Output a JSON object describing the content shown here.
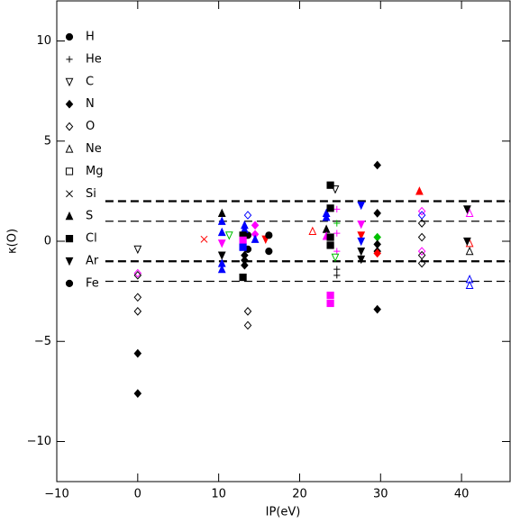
{
  "chart_data": {
    "type": "scatter",
    "x_label": "IP(eV)",
    "y_label": "κ(O)",
    "xlim": [
      -10,
      46
    ],
    "ylim": [
      -12,
      12
    ],
    "xticks": [
      {
        "value": -10,
        "label": "−10"
      },
      0,
      10,
      20,
      30,
      40
    ],
    "yticks": [
      {
        "value": -10,
        "label": "−10"
      },
      {
        "value": -5,
        "label": "−5"
      },
      0,
      5,
      10
    ],
    "hlines": [
      {
        "y": 2,
        "width": 2.2
      },
      {
        "y": 1,
        "width": 1.2
      },
      {
        "y": -1,
        "width": 2.2
      },
      {
        "y": -2,
        "width": 1.2
      }
    ],
    "hline_xlim": [
      -4,
      46
    ],
    "series": [
      {
        "name": "H",
        "marker": "circle",
        "x": [
          13.6,
          13.6
        ],
        "y": [
          0.3,
          -0.4
        ],
        "colors": [
          "#000000",
          "#000000"
        ]
      },
      {
        "name": "He",
        "marker": "plus",
        "x": [
          24.6,
          24.6,
          24.6,
          24.6,
          24.6,
          24.6
        ],
        "y": [
          1.6,
          0.9,
          0.4,
          -0.5,
          -1.4,
          -1.7
        ],
        "colors": [
          "#ff00ff",
          "#00c000",
          "#ff00ff",
          "#ff00ff",
          "#000000",
          "#000000"
        ]
      },
      {
        "name": "C",
        "marker": "tri-down-open",
        "x": [
          0,
          11.3,
          24.4,
          24.4
        ],
        "y": [
          -0.4,
          0.3,
          2.6,
          -0.8
        ],
        "colors": [
          "#000000",
          "#00c000",
          "#000000",
          "#00c000"
        ]
      },
      {
        "name": "N",
        "marker": "diamond",
        "x": [
          0,
          0,
          13.2,
          13.2,
          13.2,
          14.5,
          14.5,
          29.6,
          29.6,
          29.6,
          29.6,
          29.6,
          29.6,
          29.6
        ],
        "y": [
          -5.6,
          -7.6,
          -0.7,
          -0.95,
          -1.2,
          0.8,
          0.35,
          3.8,
          1.4,
          0.2,
          -0.15,
          -0.5,
          -0.6,
          -3.4
        ],
        "colors": [
          "#000000",
          "#000000",
          "#000000",
          "#000000",
          "#000000",
          "#ff00ff",
          "#ff00ff",
          "#000000",
          "#000000",
          "#00c000",
          "#000000",
          "#000000",
          "#ff0000",
          "#000000"
        ]
      },
      {
        "name": "O",
        "marker": "diamond-open",
        "x": [
          0,
          0,
          0,
          0,
          13.6,
          13.6,
          13.6,
          35.1,
          35.1,
          35.1,
          35.1,
          35.1,
          35.1,
          35.1
        ],
        "y": [
          -1.6,
          -1.7,
          -2.8,
          -3.5,
          1.3,
          -3.5,
          -4.2,
          1.5,
          1.3,
          0.9,
          0.2,
          -0.5,
          -0.7,
          -1.1
        ],
        "colors": [
          "#ff00ff",
          "#000000",
          "#000000",
          "#000000",
          "#0000ff",
          "#000000",
          "#000000",
          "#ff00ff",
          "#0000ff",
          "#000000",
          "#000000",
          "#ff00ff",
          "#000000",
          "#000000"
        ]
      },
      {
        "name": "Ne",
        "marker": "tri-up-open",
        "x": [
          21.6,
          41,
          41,
          41,
          41,
          41
        ],
        "y": [
          0.5,
          1.4,
          -0.1,
          -0.5,
          -1.9,
          -2.2
        ],
        "colors": [
          "#ff0000",
          "#ff00ff",
          "#ff0000",
          "#000000",
          "#0000ff",
          "#0000ff"
        ]
      },
      {
        "name": "Mg",
        "marker": "square-open",
        "x": [],
        "y": [],
        "colors": []
      },
      {
        "name": "Si",
        "marker": "cross",
        "x": [
          8.2
        ],
        "y": [
          0.1
        ],
        "colors": [
          "#ff0000"
        ]
      },
      {
        "name": "S",
        "marker": "tri-up",
        "x": [
          10.4,
          10.4,
          10.4,
          10.4,
          10.4,
          13.2,
          13.2,
          14.5,
          23.3,
          23.3,
          23.3,
          23.3,
          34.8
        ],
        "y": [
          1.4,
          1.0,
          0.45,
          -1.1,
          -1.4,
          0.8,
          0.6,
          0.1,
          1.4,
          1.2,
          0.6,
          0.25,
          2.5
        ],
        "colors": [
          "#000000",
          "#0000ff",
          "#0000ff",
          "#0000ff",
          "#0000ff",
          "#0000ff",
          "#0000ff",
          "#0000ff",
          "#0000ff",
          "#0000ff",
          "#000000",
          "#ff00ff",
          "#ff0000"
        ]
      },
      {
        "name": "Cl",
        "marker": "square",
        "x": [
          13.0,
          13.0,
          13.0,
          13.0,
          23.8,
          23.8,
          23.8,
          23.8,
          23.8,
          23.8
        ],
        "y": [
          0.3,
          0.05,
          -0.3,
          -1.8,
          2.8,
          1.65,
          0.2,
          -0.2,
          -2.7,
          -3.1
        ],
        "colors": [
          "#000000",
          "#ff00ff",
          "#0000ff",
          "#000000",
          "#000000",
          "#000000",
          "#000000",
          "#000000",
          "#ff00ff",
          "#ff00ff"
        ]
      },
      {
        "name": "Ar",
        "marker": "tri-down",
        "x": [
          10.4,
          10.4,
          15.8,
          27.6,
          27.6,
          27.6,
          27.6,
          27.6,
          27.6,
          40.7,
          40.7
        ],
        "y": [
          -0.1,
          -0.7,
          0.1,
          1.8,
          0.85,
          0.3,
          0,
          -0.5,
          -0.9,
          1.6,
          0
        ],
        "colors": [
          "#ff00ff",
          "#000000",
          "#ff0000",
          "#0000ff",
          "#ff00ff",
          "#ff0000",
          "#0000ff",
          "#000000",
          "#000000",
          "#000000",
          "#000000"
        ]
      },
      {
        "name": "Fe",
        "marker": "circle",
        "x": [
          16.2,
          16.2
        ],
        "y": [
          0.3,
          -0.5
        ],
        "colors": [
          "#000000",
          "#000000"
        ]
      }
    ]
  }
}
